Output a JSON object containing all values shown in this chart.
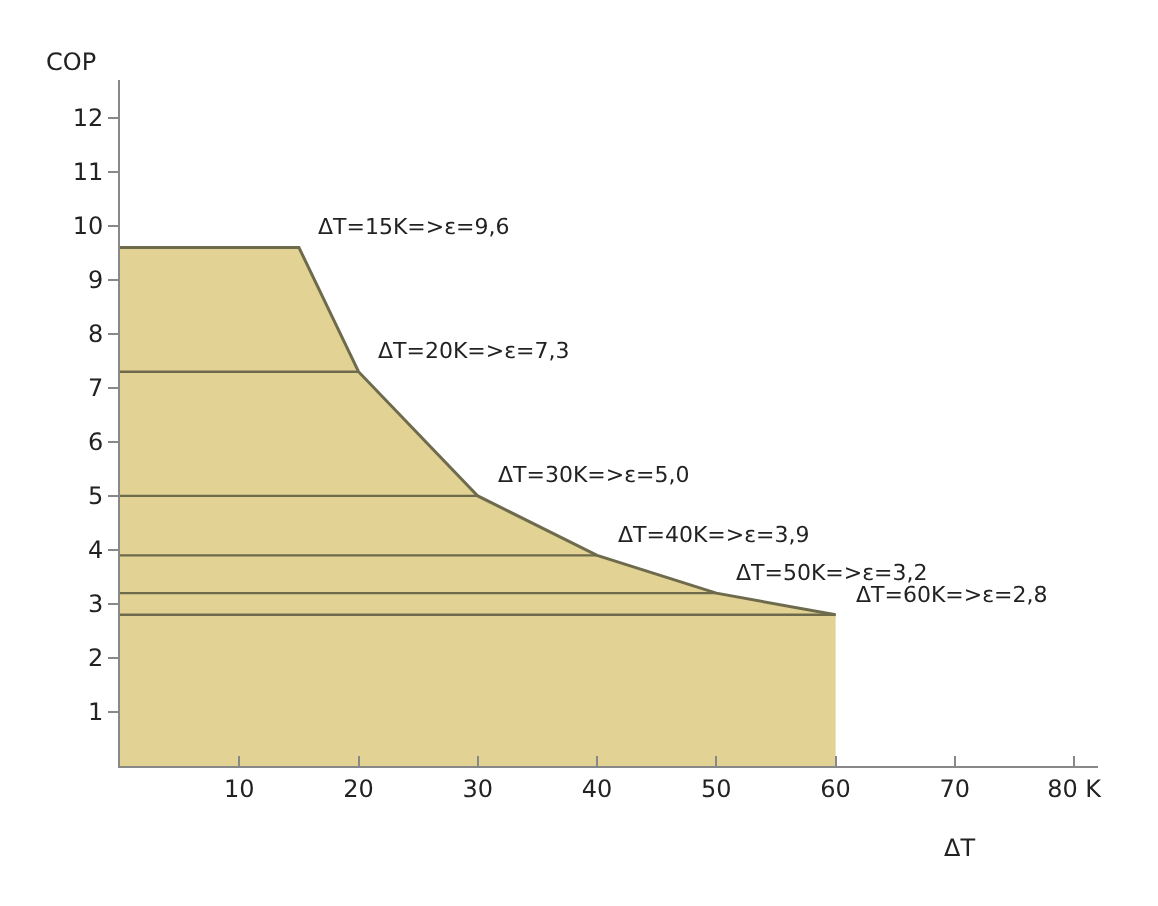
{
  "chart_data": {
    "type": "area",
    "xlabel": "ΔT",
    "ylabel": "COP",
    "xlim": [
      0,
      82
    ],
    "ylim": [
      0,
      12.7
    ],
    "xticks": [
      10,
      20,
      30,
      40,
      50,
      60,
      70,
      {
        "value": 80,
        "label": "80 K"
      }
    ],
    "yticks": [
      1,
      2,
      3,
      4,
      5,
      6,
      7,
      8,
      9,
      10,
      11,
      12
    ],
    "series": [
      {
        "type": "area",
        "color": "#e2d293",
        "x": [
          0,
          15,
          20,
          30,
          40,
          50,
          60
        ],
        "values": [
          9.6,
          9.6,
          7.3,
          5.0,
          3.9,
          3.2,
          2.8
        ]
      },
      {
        "type": "line",
        "color": "#6e6a4c",
        "x": [
          0,
          20
        ],
        "values": [
          7.3,
          7.3
        ]
      },
      {
        "type": "line",
        "color": "#6e6a4c",
        "x": [
          0,
          30
        ],
        "values": [
          5.0,
          5.0
        ]
      },
      {
        "type": "line",
        "color": "#6e6a4c",
        "x": [
          0,
          40
        ],
        "values": [
          3.9,
          3.9
        ]
      },
      {
        "type": "line",
        "color": "#6e6a4c",
        "x": [
          0,
          50
        ],
        "values": [
          3.2,
          3.2
        ]
      },
      {
        "type": "line",
        "color": "#6e6a4c",
        "x": [
          0,
          60
        ],
        "values": [
          2.8,
          2.8
        ]
      }
    ],
    "annotations": [
      {
        "text": "ΔT=15K=>ε=9,6",
        "x": 15,
        "y": 9.6
      },
      {
        "text": "ΔT=20K=>ε=7,3",
        "x": 20,
        "y": 7.3
      },
      {
        "text": "ΔT=30K=>ε=5,0",
        "x": 30,
        "y": 5.0
      },
      {
        "text": "ΔT=40K=>ε=3,9",
        "x": 40,
        "y": 3.9
      },
      {
        "text": "ΔT=50K=>ε=3,2",
        "x": 50,
        "y": 3.2
      },
      {
        "text": "ΔT=60K=>ε=2,8",
        "x": 60,
        "y": 2.8
      }
    ]
  }
}
